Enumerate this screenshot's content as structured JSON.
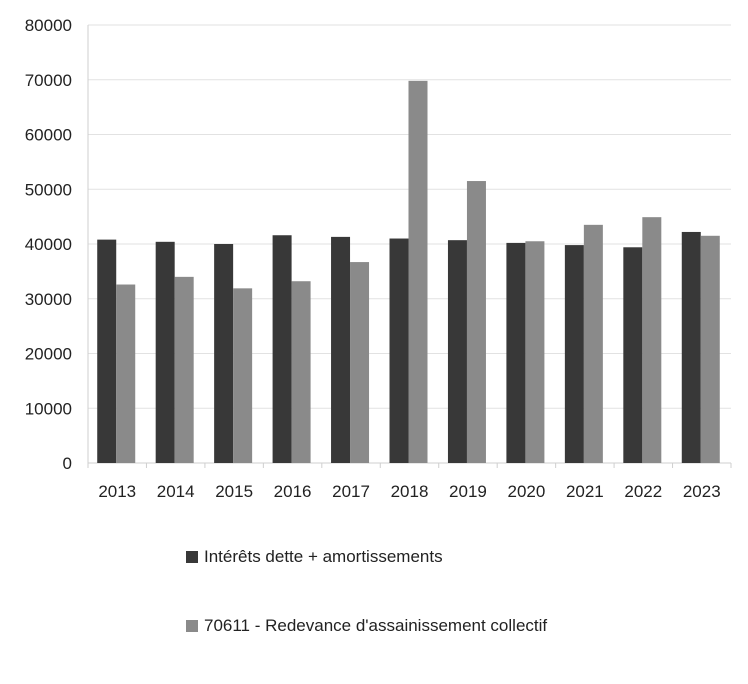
{
  "chart_data": {
    "type": "bar",
    "categories": [
      "2013",
      "2014",
      "2015",
      "2016",
      "2017",
      "2018",
      "2019",
      "2020",
      "2021",
      "2022",
      "2023"
    ],
    "series": [
      {
        "name": "Intérêts dette + amortissements",
        "color": "#383838",
        "values": [
          40800,
          40400,
          40000,
          41600,
          41300,
          41000,
          40700,
          40200,
          39800,
          39400,
          42200
        ]
      },
      {
        "name": "70611 - Redevance d'assainissement collectif",
        "color": "#8a8a8a",
        "values": [
          32600,
          34000,
          31900,
          33200,
          36700,
          69800,
          51500,
          40500,
          43500,
          44900,
          41500
        ]
      }
    ],
    "ylim": [
      0,
      80000
    ],
    "yticks": [
      "0",
      "10000",
      "20000",
      "30000",
      "40000",
      "50000",
      "60000",
      "70000",
      "80000"
    ],
    "grid": true,
    "legend_position": "bottom"
  }
}
